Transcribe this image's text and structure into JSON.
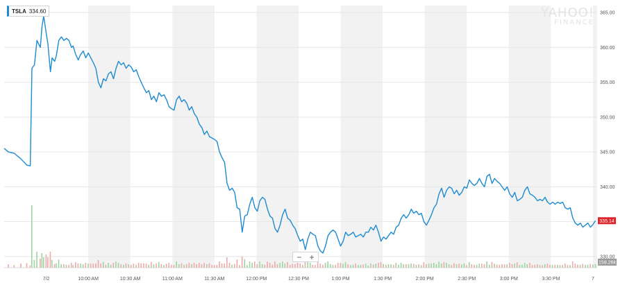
{
  "legend": {
    "symbol": "TSLA",
    "value": "334.60"
  },
  "watermark": {
    "line1": "YAHOO!",
    "line2": "FINANCE"
  },
  "zoom": {
    "minus": "−",
    "plus": "+"
  },
  "colors": {
    "line": "#1b8ad3",
    "band": "#f2f2f2",
    "price_badge": "#e0242b",
    "volume_badge": "#9a9a9a",
    "volume_up": "#9fd49f",
    "volume_down": "#efa9a9"
  },
  "chart_data": {
    "type": "line",
    "title": "",
    "xlabel": "",
    "ylabel": "",
    "ylim": [
      329.0,
      366.0
    ],
    "grid": true,
    "y_ticks": [
      "365.00",
      "360.00",
      "355.00",
      "350.00",
      "345.00",
      "340.00",
      "335.00",
      "330.00"
    ],
    "x_ticks": [
      {
        "label": "7/2",
        "x": 9.5
      },
      {
        "label": "10:00 AM",
        "x": 10.0
      },
      {
        "label": "10:30 AM",
        "x": 10.5
      },
      {
        "label": "11:00 AM",
        "x": 11.0
      },
      {
        "label": "11:30 AM",
        "x": 11.5
      },
      {
        "label": "12:00 PM",
        "x": 12.0
      },
      {
        "label": "12:30 PM",
        "x": 12.5
      },
      {
        "label": "1:00 PM",
        "x": 13.0
      },
      {
        "label": "1:30 PM",
        "x": 13.5
      },
      {
        "label": "2:00 PM",
        "x": 14.0
      },
      {
        "label": "2:30 PM",
        "x": 14.5
      },
      {
        "label": "3:00 PM",
        "x": 15.0
      },
      {
        "label": "3:30 PM",
        "x": 15.5
      },
      {
        "label": "7",
        "x": 16.0
      }
    ],
    "x_range": [
      9.0,
      16.05
    ],
    "price_label": "335.14",
    "volume_label": "158.26k",
    "series": [
      {
        "values": [
          [
            9.0,
            345.5
          ],
          [
            9.05,
            345.0
          ],
          [
            9.12,
            344.8
          ],
          [
            9.2,
            344.0
          ],
          [
            9.27,
            343.1
          ],
          [
            9.31,
            343.0
          ],
          [
            9.33,
            357.0
          ],
          [
            9.36,
            357.5
          ],
          [
            9.39,
            361.0
          ],
          [
            9.43,
            360.0
          ],
          [
            9.45,
            363.0
          ],
          [
            9.47,
            364.5
          ],
          [
            9.5,
            362.0
          ],
          [
            9.52,
            360.5
          ],
          [
            9.55,
            356.5
          ],
          [
            9.57,
            358.5
          ],
          [
            9.6,
            358.0
          ],
          [
            9.62,
            358.8
          ],
          [
            9.65,
            361.0
          ],
          [
            9.68,
            361.5
          ],
          [
            9.71,
            361.0
          ],
          [
            9.74,
            361.3
          ],
          [
            9.77,
            361.0
          ],
          [
            9.8,
            360.0
          ],
          [
            9.82,
            360.2
          ],
          [
            9.85,
            359.0
          ],
          [
            9.88,
            358.2
          ],
          [
            9.91,
            359.0
          ],
          [
            9.94,
            359.5
          ],
          [
            9.97,
            358.5
          ],
          [
            10.0,
            359.2
          ],
          [
            10.03,
            358.5
          ],
          [
            10.06,
            357.8
          ],
          [
            10.09,
            357.0
          ],
          [
            10.12,
            355.0
          ],
          [
            10.15,
            354.2
          ],
          [
            10.18,
            355.5
          ],
          [
            10.21,
            355.2
          ],
          [
            10.24,
            356.2
          ],
          [
            10.27,
            356.5
          ],
          [
            10.3,
            355.5
          ],
          [
            10.33,
            357.0
          ],
          [
            10.36,
            358.0
          ],
          [
            10.39,
            357.5
          ],
          [
            10.42,
            357.8
          ],
          [
            10.45,
            357.0
          ],
          [
            10.48,
            357.5
          ],
          [
            10.51,
            357.2
          ],
          [
            10.54,
            356.5
          ],
          [
            10.57,
            356.8
          ],
          [
            10.6,
            355.8
          ],
          [
            10.63,
            355.0
          ],
          [
            10.66,
            354.2
          ],
          [
            10.69,
            353.5
          ],
          [
            10.72,
            353.8
          ],
          [
            10.75,
            352.5
          ],
          [
            10.78,
            353.0
          ],
          [
            10.81,
            352.2
          ],
          [
            10.84,
            353.5
          ],
          [
            10.87,
            353.0
          ],
          [
            10.9,
            353.2
          ],
          [
            10.93,
            352.5
          ],
          [
            10.96,
            351.5
          ],
          [
            10.99,
            351.2
          ],
          [
            11.02,
            351.0
          ],
          [
            11.05,
            352.5
          ],
          [
            11.08,
            353.0
          ],
          [
            11.11,
            352.2
          ],
          [
            11.14,
            352.5
          ],
          [
            11.17,
            352.0
          ],
          [
            11.2,
            351.0
          ],
          [
            11.23,
            351.5
          ],
          [
            11.26,
            350.5
          ],
          [
            11.29,
            350.0
          ],
          [
            11.32,
            349.0
          ],
          [
            11.35,
            348.5
          ],
          [
            11.38,
            347.5
          ],
          [
            11.41,
            348.0
          ],
          [
            11.44,
            347.2
          ],
          [
            11.47,
            347.0
          ],
          [
            11.5,
            346.8
          ],
          [
            11.53,
            346.5
          ],
          [
            11.56,
            345.0
          ],
          [
            11.59,
            344.2
          ],
          [
            11.62,
            343.5
          ],
          [
            11.65,
            340.5
          ],
          [
            11.68,
            339.5
          ],
          [
            11.71,
            339.8
          ],
          [
            11.74,
            339.2
          ],
          [
            11.77,
            337.0
          ],
          [
            11.8,
            336.8
          ],
          [
            11.83,
            333.5
          ],
          [
            11.86,
            335.8
          ],
          [
            11.89,
            336.0
          ],
          [
            11.92,
            337.5
          ],
          [
            11.95,
            338.5
          ],
          [
            11.98,
            337.0
          ],
          [
            12.01,
            336.5
          ],
          [
            12.04,
            338.0
          ],
          [
            12.07,
            338.5
          ],
          [
            12.1,
            338.2
          ],
          [
            12.13,
            336.8
          ],
          [
            12.16,
            335.8
          ],
          [
            12.19,
            335.5
          ],
          [
            12.22,
            334.0
          ],
          [
            12.25,
            333.5
          ],
          [
            12.28,
            334.5
          ],
          [
            12.31,
            336.0
          ],
          [
            12.34,
            336.8
          ],
          [
            12.37,
            335.5
          ],
          [
            12.4,
            335.2
          ],
          [
            12.43,
            334.5
          ],
          [
            12.46,
            334.0
          ],
          [
            12.49,
            333.0
          ],
          [
            12.52,
            332.2
          ],
          [
            12.55,
            332.5
          ],
          [
            12.58,
            331.0
          ],
          [
            12.61,
            332.5
          ],
          [
            12.64,
            333.5
          ],
          [
            12.67,
            333.2
          ],
          [
            12.7,
            333.0
          ],
          [
            12.73,
            331.5
          ],
          [
            12.76,
            330.8
          ],
          [
            12.79,
            330.5
          ],
          [
            12.82,
            331.5
          ],
          [
            12.85,
            333.0
          ],
          [
            12.88,
            333.5
          ],
          [
            12.91,
            333.8
          ],
          [
            12.94,
            333.5
          ],
          [
            12.97,
            332.5
          ],
          [
            13.0,
            331.5
          ],
          [
            13.03,
            332.2
          ],
          [
            13.06,
            333.5
          ],
          [
            13.09,
            333.0
          ],
          [
            13.12,
            333.2
          ],
          [
            13.15,
            333.5
          ],
          [
            13.18,
            332.8
          ],
          [
            13.21,
            333.0
          ],
          [
            13.24,
            333.2
          ],
          [
            13.27,
            332.8
          ],
          [
            13.3,
            333.5
          ],
          [
            13.33,
            333.5
          ],
          [
            13.36,
            334.2
          ],
          [
            13.39,
            333.8
          ],
          [
            13.42,
            334.5
          ],
          [
            13.45,
            333.5
          ],
          [
            13.48,
            332.2
          ],
          [
            13.51,
            332.8
          ],
          [
            13.54,
            332.5
          ],
          [
            13.57,
            333.0
          ],
          [
            13.6,
            333.5
          ],
          [
            13.63,
            333.2
          ],
          [
            13.66,
            334.2
          ],
          [
            13.69,
            334.5
          ],
          [
            13.72,
            335.5
          ],
          [
            13.75,
            336.0
          ],
          [
            13.78,
            335.5
          ],
          [
            13.81,
            336.0
          ],
          [
            13.84,
            336.8
          ],
          [
            13.87,
            336.2
          ],
          [
            13.9,
            336.5
          ],
          [
            13.93,
            336.0
          ],
          [
            13.96,
            336.2
          ],
          [
            13.99,
            335.0
          ],
          [
            14.02,
            334.5
          ],
          [
            14.05,
            335.2
          ],
          [
            14.08,
            336.0
          ],
          [
            14.11,
            337.0
          ],
          [
            14.14,
            337.5
          ],
          [
            14.17,
            339.0
          ],
          [
            14.2,
            339.8
          ],
          [
            14.23,
            338.5
          ],
          [
            14.26,
            339.5
          ],
          [
            14.29,
            340.0
          ],
          [
            14.32,
            339.8
          ],
          [
            14.35,
            339.0
          ],
          [
            14.38,
            339.5
          ],
          [
            14.41,
            338.8
          ],
          [
            14.44,
            339.2
          ],
          [
            14.47,
            340.0
          ],
          [
            14.5,
            339.8
          ],
          [
            14.53,
            341.0
          ],
          [
            14.56,
            340.5
          ],
          [
            14.59,
            340.2
          ],
          [
            14.62,
            340.5
          ],
          [
            14.65,
            341.2
          ],
          [
            14.68,
            340.5
          ],
          [
            14.71,
            340.0
          ],
          [
            14.74,
            341.5
          ],
          [
            14.77,
            341.8
          ],
          [
            14.8,
            340.5
          ],
          [
            14.83,
            341.2
          ],
          [
            14.86,
            340.8
          ],
          [
            14.89,
            340.5
          ],
          [
            14.92,
            340.0
          ],
          [
            14.95,
            339.5
          ],
          [
            14.98,
            340.0
          ],
          [
            15.01,
            339.0
          ],
          [
            15.04,
            338.5
          ],
          [
            15.07,
            339.2
          ],
          [
            15.1,
            338.0
          ],
          [
            15.13,
            338.2
          ],
          [
            15.16,
            338.5
          ],
          [
            15.19,
            339.5
          ],
          [
            15.22,
            340.0
          ],
          [
            15.25,
            339.0
          ],
          [
            15.28,
            338.8
          ],
          [
            15.31,
            338.5
          ],
          [
            15.34,
            338.0
          ],
          [
            15.37,
            338.2
          ],
          [
            15.4,
            338.0
          ],
          [
            15.43,
            338.5
          ],
          [
            15.46,
            337.8
          ],
          [
            15.49,
            337.5
          ],
          [
            15.52,
            337.8
          ],
          [
            15.55,
            337.5
          ],
          [
            15.58,
            337.8
          ],
          [
            15.61,
            337.6
          ],
          [
            15.64,
            337.8
          ],
          [
            15.67,
            337.0
          ],
          [
            15.7,
            336.8
          ],
          [
            15.73,
            337.0
          ],
          [
            15.76,
            335.5
          ],
          [
            15.79,
            334.8
          ],
          [
            15.82,
            334.5
          ],
          [
            15.85,
            334.8
          ],
          [
            15.88,
            334.2
          ],
          [
            15.91,
            334.5
          ],
          [
            15.94,
            334.8
          ],
          [
            15.97,
            334.2
          ],
          [
            16.0,
            334.6
          ],
          [
            16.03,
            335.14
          ]
        ]
      }
    ]
  }
}
